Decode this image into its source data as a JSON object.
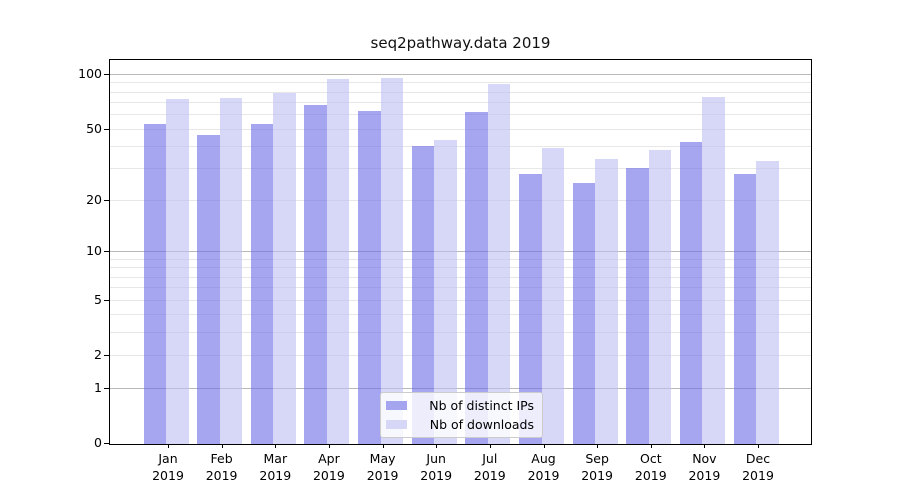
{
  "title": "seq2pathway.data 2019",
  "chart_data": {
    "type": "bar",
    "title": "seq2pathway.data 2019",
    "categories": [
      "Jan 2019",
      "Feb 2019",
      "Mar 2019",
      "Apr 2019",
      "May 2019",
      "Jun 2019",
      "Jul 2019",
      "Aug 2019",
      "Sep 2019",
      "Oct 2019",
      "Nov 2019",
      "Dec 2019"
    ],
    "series": [
      {
        "name": "Nb of distinct IPs",
        "color": "#a4a4ef",
        "bar_color": "rgba(110,110,230,0.62)",
        "values": [
          53,
          46,
          53,
          68,
          63,
          40,
          62,
          28,
          25,
          30,
          42,
          28
        ]
      },
      {
        "name": "Nb of downloads",
        "color": "#d6d6f7",
        "bar_color": "rgba(190,190,243,0.62)",
        "values": [
          73,
          74,
          79,
          94,
          95,
          43,
          88,
          39,
          34,
          38,
          75,
          33
        ]
      }
    ],
    "yscale": "log1p",
    "ylim": [
      0,
      120
    ],
    "yticks": [
      0,
      1,
      2,
      5,
      10,
      20,
      50,
      100
    ],
    "major_gridlines": [
      1,
      10,
      100
    ],
    "minor_gridlines": [
      2,
      3,
      4,
      5,
      6,
      7,
      8,
      9,
      20,
      30,
      40,
      50,
      60,
      70,
      80,
      90
    ],
    "grid": true,
    "legend_position": "lower center",
    "xlabel": "",
    "ylabel": ""
  },
  "legend": {
    "items": [
      {
        "label": "Nb of distinct IPs"
      },
      {
        "label": "Nb of downloads"
      }
    ]
  }
}
